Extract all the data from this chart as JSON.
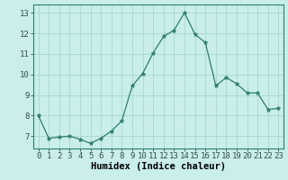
{
  "x": [
    0,
    1,
    2,
    3,
    4,
    5,
    6,
    7,
    8,
    9,
    10,
    11,
    12,
    13,
    14,
    15,
    16,
    17,
    18,
    19,
    20,
    21,
    22,
    23
  ],
  "y": [
    8.0,
    6.9,
    6.95,
    7.0,
    6.85,
    6.65,
    6.9,
    7.25,
    7.75,
    9.45,
    10.05,
    11.05,
    11.85,
    12.15,
    13.0,
    11.95,
    11.55,
    9.45,
    9.85,
    9.55,
    9.1,
    9.1,
    8.3,
    8.35
  ],
  "line_color": "#2e7d6e",
  "marker": "*",
  "marker_size": 3.5,
  "bg_color": "#c9eeeb",
  "grid_color": "#a8d8d0",
  "xlabel": "Humidex (Indice chaleur)",
  "xlim": [
    -0.5,
    23.5
  ],
  "ylim": [
    6.4,
    13.4
  ],
  "yticks": [
    7,
    8,
    9,
    10,
    11,
    12,
    13
  ],
  "xticks": [
    0,
    1,
    2,
    3,
    4,
    5,
    6,
    7,
    8,
    9,
    10,
    11,
    12,
    13,
    14,
    15,
    16,
    17,
    18,
    19,
    20,
    21,
    22,
    23
  ],
  "xtick_labels": [
    "0",
    "1",
    "2",
    "3",
    "4",
    "5",
    "6",
    "7",
    "8",
    "9",
    "10",
    "11",
    "12",
    "13",
    "14",
    "15",
    "16",
    "17",
    "18",
    "19",
    "20",
    "21",
    "22",
    "23"
  ],
  "tick_fontsize": 6.5,
  "label_fontsize": 7.5
}
